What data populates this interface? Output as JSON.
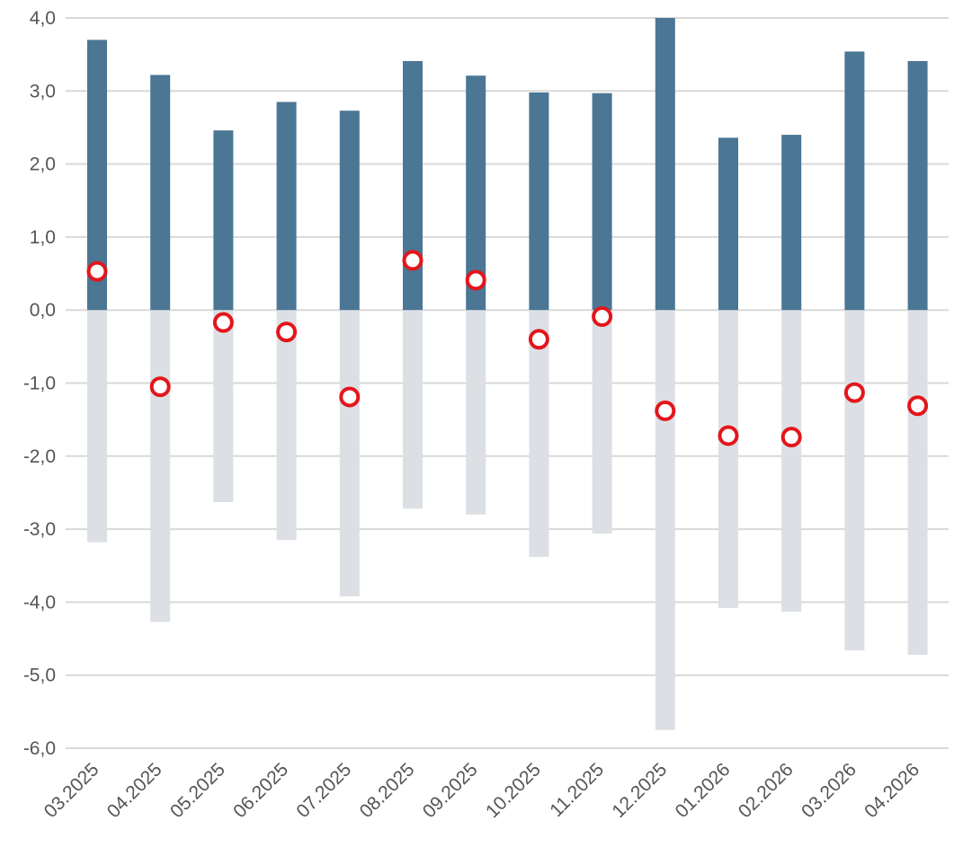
{
  "chart_data": {
    "type": "bar",
    "categories": [
      "03.2025",
      "04.2025",
      "05.2025",
      "06.2025",
      "07.2025",
      "08.2025",
      "09.2025",
      "10.2025",
      "11.2025",
      "12.2025",
      "01.2026",
      "02.2026",
      "03.2026",
      "04.2026"
    ],
    "series": [
      {
        "values": [
          3.7,
          3.22,
          2.46,
          2.85,
          2.73,
          3.41,
          3.21,
          2.98,
          2.97,
          4.0,
          2.36,
          2.4,
          3.54,
          3.41
        ],
        "color": "#4b7694"
      },
      {
        "values": [
          -3.18,
          -4.27,
          -2.63,
          -3.15,
          -3.92,
          -2.72,
          -2.8,
          -3.38,
          -3.06,
          -5.75,
          -4.08,
          -4.13,
          -4.66,
          -4.72
        ],
        "color": "#dce0e4"
      },
      {
        "values": [
          0.53,
          -1.05,
          -0.17,
          -0.3,
          -1.19,
          0.68,
          0.41,
          -0.4,
          -0.09,
          -1.38,
          -1.72,
          -1.74,
          -1.13,
          -1.31
        ],
        "color": "#e3161b",
        "style": "marker"
      }
    ],
    "yticks": [
      "4,0",
      "3,0",
      "2,0",
      "1,0",
      "0,0",
      "-1,0",
      "-2,0",
      "-3,0",
      "-4,0",
      "-5,0",
      "-6,0"
    ],
    "ylim": [
      -6,
      4
    ],
    "grid": true,
    "legend": "none"
  }
}
